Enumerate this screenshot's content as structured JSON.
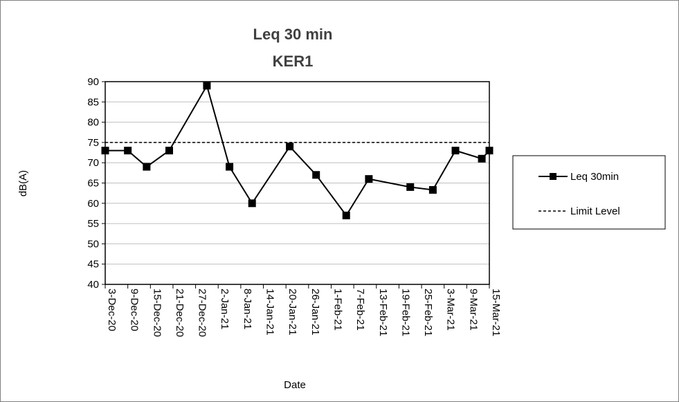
{
  "chart_data": {
    "type": "line",
    "title": "Leq 30 min",
    "subtitle": "KER1",
    "xlabel": "Date",
    "ylabel": "dB(A)",
    "ylim": [
      40,
      90
    ],
    "yticks": [
      40,
      45,
      50,
      55,
      60,
      65,
      70,
      75,
      80,
      85,
      90
    ],
    "xlim": [
      "3-Dec-20",
      "15-Mar-21"
    ],
    "xticks": [
      "3-Dec-20",
      "9-Dec-20",
      "15-Dec-20",
      "21-Dec-20",
      "27-Dec-20",
      "2-Jan-21",
      "8-Jan-21",
      "14-Jan-21",
      "20-Jan-21",
      "26-Jan-21",
      "1-Feb-21",
      "7-Feb-21",
      "13-Feb-21",
      "19-Feb-21",
      "25-Feb-21",
      "3-Mar-21",
      "9-Mar-21",
      "15-Mar-21"
    ],
    "grid": true,
    "legend_position": "right",
    "series": [
      {
        "name": "Leq 30min",
        "style": "solid-square-markers",
        "color": "#000000",
        "x": [
          "3-Dec-20",
          "9-Dec-20",
          "14-Dec-20",
          "20-Dec-20",
          "30-Dec-20",
          "5-Jan-21",
          "11-Jan-21",
          "21-Jan-21",
          "28-Jan-21",
          "5-Feb-21",
          "11-Feb-21",
          "22-Feb-21",
          "28-Feb-21",
          "6-Mar-21",
          "13-Mar-21",
          "15-Mar-21"
        ],
        "y": [
          73,
          73,
          69,
          73,
          89,
          69,
          60,
          74,
          67,
          57,
          66,
          64,
          63.3,
          73,
          71,
          73
        ]
      },
      {
        "name": "Limit Level",
        "style": "dashed",
        "color": "#000000",
        "x": [
          "3-Dec-20",
          "15-Mar-21"
        ],
        "y": [
          75,
          75
        ]
      }
    ]
  }
}
